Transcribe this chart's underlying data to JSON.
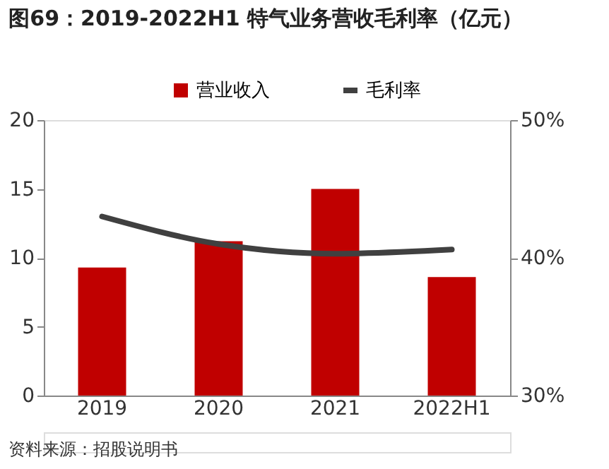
{
  "chart_data": {
    "type": "bar",
    "title": "图69：2019-2022H1 特气业务营收毛利率（亿元）",
    "categories": [
      "2019",
      "2020",
      "2021",
      "2022H1"
    ],
    "series": [
      {
        "name": "营业收入",
        "color": "#c00000",
        "values": [
          9.3,
          11.2,
          15.0,
          8.6
        ]
      },
      {
        "name": "毛利率",
        "type": "line",
        "axis": "y2",
        "color": "#404040",
        "values": [
          43.0,
          41.0,
          40.3,
          40.6
        ]
      }
    ],
    "ylim": [
      0,
      20
    ],
    "yticks": [
      0,
      5,
      10,
      15,
      20
    ],
    "y2lim": [
      30,
      50
    ],
    "y2ticks": [
      {
        "value": 30,
        "label": "30%"
      },
      {
        "value": 40,
        "label": "40%"
      },
      {
        "value": 50,
        "label": "50%"
      }
    ],
    "legend": "top",
    "grid": false,
    "marker": "none",
    "line_style": "solid",
    "annotations": [
      "资料来源：招股说明书"
    ]
  }
}
